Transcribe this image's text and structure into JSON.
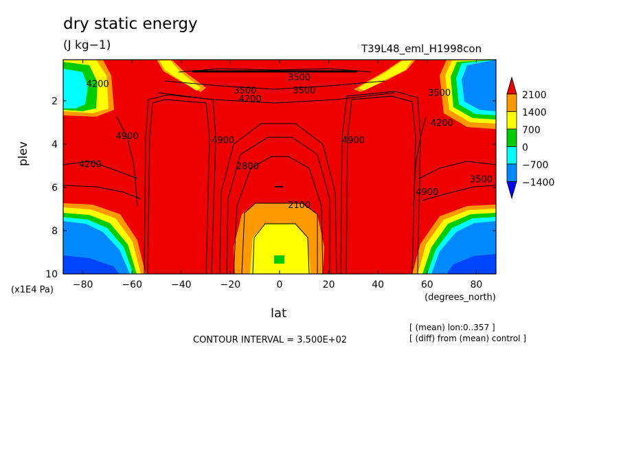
{
  "chart_data": {
    "type": "contour",
    "title": "dry static energy",
    "units": "(J kg−1)",
    "run_name": "T39L48_eml_H1998con",
    "xlabel": "lat",
    "xunit": "(degrees_north)",
    "ylabel": "plev",
    "yunit": "(x1E4 Pa)",
    "xlim": [
      -88,
      88
    ],
    "ylim": [
      10,
      0.1
    ],
    "xticks": [
      "−80",
      "−60",
      "−40",
      "−20",
      "0",
      "20",
      "40",
      "60",
      "80"
    ],
    "yticks": [
      "2",
      "4",
      "6",
      "8",
      "10"
    ],
    "contour_interval_text": "CONTOUR INTERVAL = 3.500E+02",
    "notes": [
      "[ (mean) lon:0..357 ]",
      "[ (diff) from (mean) control ]"
    ],
    "colorbar": {
      "levels": [
        "2100",
        "1400",
        "700",
        "0",
        "−700",
        "−1400"
      ],
      "colors": [
        "#ee0000",
        "#ff9900",
        "#ffff00",
        "#00cc00",
        "#00ffff",
        "#0088ff",
        "#0000ff"
      ]
    },
    "contour_labels": [
      {
        "text": "3500",
        "lat": 8,
        "p": 0.9
      },
      {
        "text": "3500",
        "lat": 10,
        "p": 1.5
      },
      {
        "text": "3500",
        "lat": -14,
        "p": 1.5
      },
      {
        "text": "4200",
        "lat": -12,
        "p": 1.9
      },
      {
        "text": "4200",
        "lat": -74,
        "p": 1.2
      },
      {
        "text": "4900",
        "lat": -62,
        "p": 3.6
      },
      {
        "text": "4200",
        "lat": -77,
        "p": 4.9
      },
      {
        "text": "4900",
        "lat": -23,
        "p": 3.8
      },
      {
        "text": "2800",
        "lat": -13,
        "p": 5.0
      },
      {
        "text": "2100",
        "lat": 8,
        "p": 6.8
      },
      {
        "text": "3500",
        "lat": 65,
        "p": 1.6
      },
      {
        "text": "4200",
        "lat": 66,
        "p": 3.0
      },
      {
        "text": "3500",
        "lat": 82,
        "p": 5.6
      },
      {
        "text": "4900",
        "lat": 60,
        "p": 6.2
      },
      {
        "text": "4900",
        "lat": 30,
        "p": 3.8
      }
    ]
  }
}
